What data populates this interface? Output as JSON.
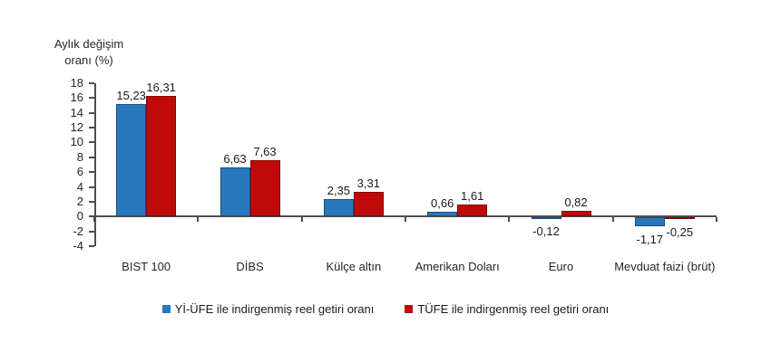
{
  "chart_data": {
    "type": "bar",
    "title": "",
    "ylabel": "Aylık değişim\noranı (%)",
    "xlabel": "",
    "categories": [
      "BIST 100",
      "DİBS",
      "Külçe altın",
      "Amerikan Doları",
      "Euro",
      "Mevduat faizi (brüt)"
    ],
    "series": [
      {
        "name": "Yİ-ÜFE ile indirgenmiş reel getiri oranı",
        "color": "#2878BD",
        "values": [
          15.23,
          6.63,
          2.35,
          0.66,
          -0.12,
          -1.17
        ],
        "value_labels": [
          "15,23",
          "6,63",
          "2,35",
          "0,66",
          "-0,12",
          "-1,17"
        ]
      },
      {
        "name": "TÜFE ile indirgenmiş reel getiri oranı",
        "color": "#C00A0A",
        "values": [
          16.31,
          7.63,
          3.31,
          1.61,
          0.82,
          -0.25
        ],
        "value_labels": [
          "16,31",
          "7,63",
          "3,31",
          "1,61",
          "0,82",
          "-0,25"
        ]
      }
    ],
    "y_ticks": [
      18,
      16,
      14,
      12,
      10,
      8,
      6,
      4,
      2,
      0,
      -2,
      -4
    ],
    "ylim": [
      -4,
      18
    ],
    "grid": false,
    "legend_position": "bottom",
    "axis_color": "#4d4d4d",
    "text_color": "#262626"
  }
}
